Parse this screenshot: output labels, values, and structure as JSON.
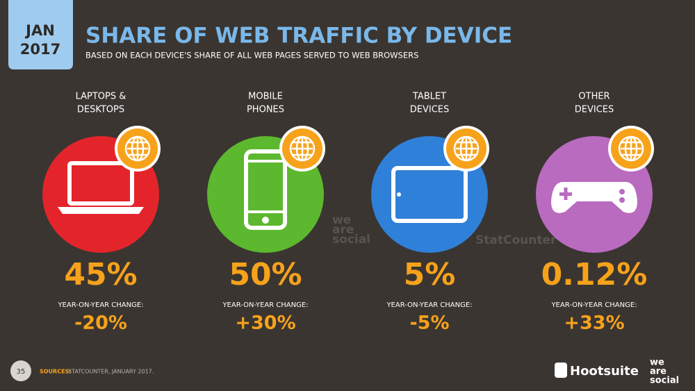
{
  "badge": {
    "month": "JAN",
    "year": "2017"
  },
  "header": {
    "title": "SHARE OF WEB TRAFFIC BY DEVICE",
    "subtitle": "BASED ON EACH DEVICE'S SHARE OF ALL WEB PAGES SERVED TO WEB BROWSERS"
  },
  "devices": [
    {
      "label": [
        "LAPTOPS &",
        "DESKTOPS"
      ],
      "share": "45%",
      "change_label": "YEAR-ON-YEAR CHANGE:",
      "change": "-20%",
      "color": "#e3252b",
      "icon": "laptop"
    },
    {
      "label": [
        "MOBILE",
        "PHONES"
      ],
      "share": "50%",
      "change_label": "YEAR-ON-YEAR CHANGE:",
      "change": "+30%",
      "color": "#5cb82e",
      "icon": "phone"
    },
    {
      "label": [
        "TABLET",
        "DEVICES"
      ],
      "share": "5%",
      "change_label": "YEAR-ON-YEAR CHANGE:",
      "change": "-5%",
      "color": "#2f80d8",
      "icon": "tablet"
    },
    {
      "label": [
        "OTHER",
        "DEVICES"
      ],
      "share": "0.12%",
      "change_label": "YEAR-ON-YEAR CHANGE:",
      "change": "+33%",
      "color": "#b96bbf",
      "icon": "gamepad"
    }
  ],
  "watermarks": {
    "social": [
      "we",
      "are",
      "social"
    ],
    "statcounter": "StatCounter"
  },
  "footer": {
    "page": "35",
    "sources_label": "SOURCES:",
    "sources": "STATCOUNTER, JANUARY 2017.",
    "hootsuite": "Hootsuite",
    "wearesocial": [
      "we",
      "are",
      "social"
    ]
  }
}
